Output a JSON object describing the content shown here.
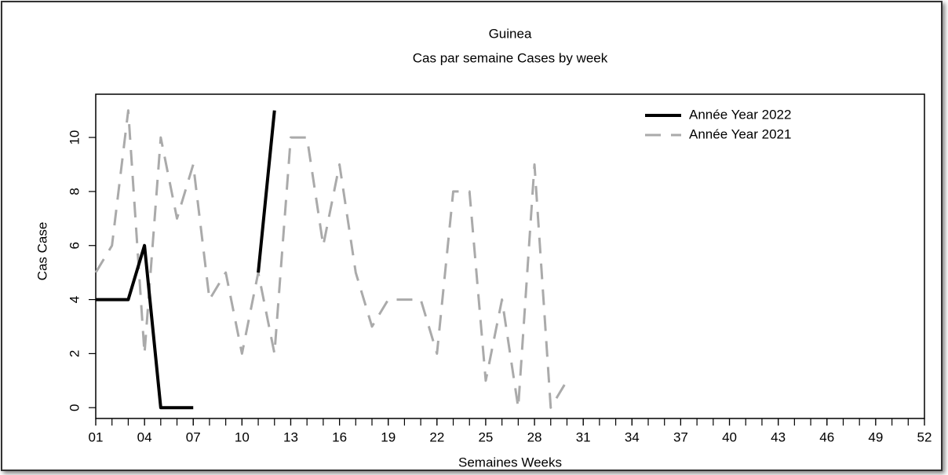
{
  "chart_data": {
    "type": "line",
    "title": "Guinea",
    "subtitle": "Cas par semaine Cases by week",
    "xlabel": "Semaines Weeks",
    "ylabel": "Cas Case",
    "xlim": [
      1,
      52
    ],
    "ylim": [
      -0.4,
      11.6
    ],
    "xticks": [
      {
        "value": 1,
        "label": "01"
      },
      {
        "value": 4,
        "label": "04"
      },
      {
        "value": 7,
        "label": "07"
      },
      10,
      13,
      16,
      19,
      22,
      25,
      28,
      31,
      34,
      37,
      40,
      43,
      46,
      49,
      52
    ],
    "xminorticks": [
      1,
      2,
      3,
      4,
      5,
      6,
      7,
      8,
      9,
      10,
      11,
      12,
      13,
      14,
      15,
      16,
      17,
      18,
      19,
      20,
      21,
      22,
      23,
      24,
      25,
      26,
      27,
      28,
      29,
      30,
      31,
      32,
      33,
      34,
      35,
      36,
      37,
      38,
      39,
      40,
      41,
      42,
      43,
      44,
      45,
      46,
      47,
      48,
      49,
      50,
      51,
      52
    ],
    "yticks": [
      0,
      2,
      4,
      6,
      8,
      10
    ],
    "legend": "upper right",
    "series": [
      {
        "name": "Année Year 2022",
        "color": "#000000",
        "style": "solid",
        "x": [
          1,
          2,
          3,
          4,
          5,
          6,
          7,
          8,
          9,
          10,
          11,
          12
        ],
        "values": [
          4,
          4,
          4,
          6,
          0,
          0,
          0,
          null,
          null,
          null,
          5,
          11
        ]
      },
      {
        "name": "Année Year 2021",
        "color": "#aaaaaa",
        "style": "dashed",
        "x": [
          1,
          2,
          3,
          4,
          5,
          6,
          7,
          8,
          9,
          10,
          11,
          12,
          13,
          14,
          15,
          16,
          17,
          18,
          19,
          20,
          21,
          22,
          23,
          24,
          25,
          26,
          27,
          28,
          29,
          30
        ],
        "values": [
          5,
          6,
          11,
          2,
          10,
          7,
          9,
          4,
          5,
          2,
          5,
          2,
          10,
          10,
          6,
          9,
          5,
          3,
          4,
          4,
          4,
          2,
          8,
          8,
          1,
          4,
          0,
          9,
          0,
          1
        ]
      }
    ]
  }
}
